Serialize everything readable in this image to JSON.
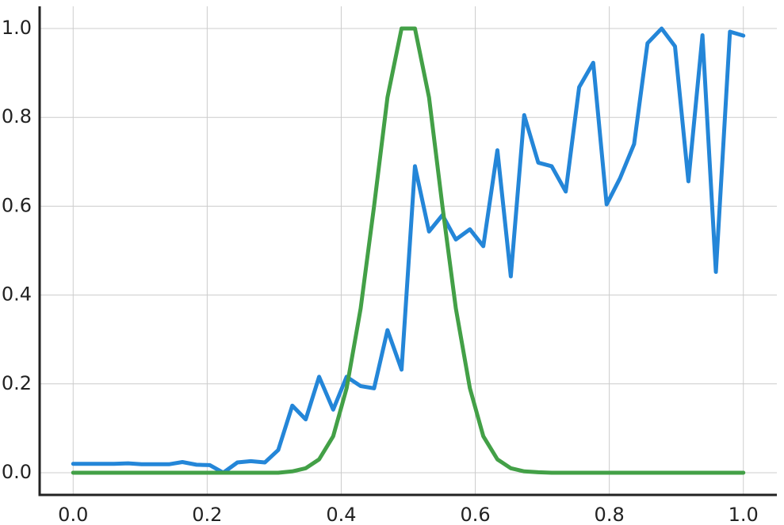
{
  "chart_data": {
    "type": "line",
    "title": "",
    "xlabel": "",
    "ylabel": "",
    "xlim": [
      -0.05,
      1.05
    ],
    "ylim": [
      -0.05,
      1.05
    ],
    "x_ticks": [
      0.0,
      0.2,
      0.4,
      0.6,
      0.8,
      1.0
    ],
    "x_tick_labels": [
      "0.0",
      "0.2",
      "0.4",
      "0.6",
      "0.8",
      "1.0"
    ],
    "y_ticks": [
      0.0,
      0.2,
      0.4,
      0.6,
      0.8,
      1.0
    ],
    "y_tick_labels": [
      "0.0",
      "0.2",
      "0.4",
      "0.6",
      "0.8",
      "1.0"
    ],
    "grid": true,
    "legend": "none",
    "series": [
      {
        "color": "#2486d8",
        "x": [
          0.0,
          0.02,
          0.041,
          0.061,
          0.082,
          0.102,
          0.122,
          0.143,
          0.163,
          0.184,
          0.204,
          0.224,
          0.245,
          0.265,
          0.286,
          0.306,
          0.327,
          0.347,
          0.367,
          0.388,
          0.408,
          0.429,
          0.449,
          0.469,
          0.49,
          0.51,
          0.531,
          0.551,
          0.571,
          0.592,
          0.612,
          0.633,
          0.653,
          0.673,
          0.694,
          0.714,
          0.735,
          0.755,
          0.776,
          0.796,
          0.816,
          0.837,
          0.857,
          0.878,
          0.898,
          0.918,
          0.939,
          0.959,
          0.98,
          1.0
        ],
        "y": [
          0.02,
          0.02,
          0.02,
          0.02,
          0.021,
          0.019,
          0.019,
          0.019,
          0.024,
          0.018,
          0.017,
          0.0,
          0.023,
          0.026,
          0.023,
          0.051,
          0.151,
          0.12,
          0.216,
          0.142,
          0.216,
          0.195,
          0.19,
          0.321,
          0.232,
          0.69,
          0.543,
          0.58,
          0.525,
          0.548,
          0.51,
          0.726,
          0.442,
          0.805,
          0.698,
          0.69,
          0.633,
          0.868,
          0.923,
          0.604,
          0.663,
          0.74,
          0.967,
          1.0,
          0.96,
          0.656,
          0.985,
          0.452,
          0.993,
          0.984
        ]
      },
      {
        "color": "#43a047",
        "x": [
          0.0,
          0.02,
          0.041,
          0.061,
          0.082,
          0.102,
          0.122,
          0.143,
          0.163,
          0.184,
          0.204,
          0.224,
          0.245,
          0.265,
          0.286,
          0.306,
          0.327,
          0.347,
          0.367,
          0.388,
          0.408,
          0.429,
          0.449,
          0.469,
          0.49,
          0.51,
          0.531,
          0.551,
          0.571,
          0.592,
          0.612,
          0.633,
          0.653,
          0.673,
          0.694,
          0.714,
          0.735,
          0.755,
          0.776,
          0.796,
          0.816,
          0.837,
          0.857,
          0.878,
          0.898,
          0.918,
          0.939,
          0.959,
          0.98,
          1.0
        ],
        "y": [
          0.0,
          0.0,
          0.0,
          0.0,
          0.0,
          0.0,
          0.0,
          0.0,
          0.0,
          0.0,
          0.0,
          0.0,
          0.0,
          0.0,
          0.0,
          0.0,
          0.003,
          0.01,
          0.03,
          0.082,
          0.19,
          0.37,
          0.6,
          0.845,
          1.0,
          1.0,
          0.845,
          0.6,
          0.37,
          0.19,
          0.082,
          0.03,
          0.01,
          0.003,
          0.001,
          0.0,
          0.0,
          0.0,
          0.0,
          0.0,
          0.0,
          0.0,
          0.0,
          0.0,
          0.0,
          0.0,
          0.0,
          0.0,
          0.0,
          0.0
        ]
      }
    ]
  }
}
